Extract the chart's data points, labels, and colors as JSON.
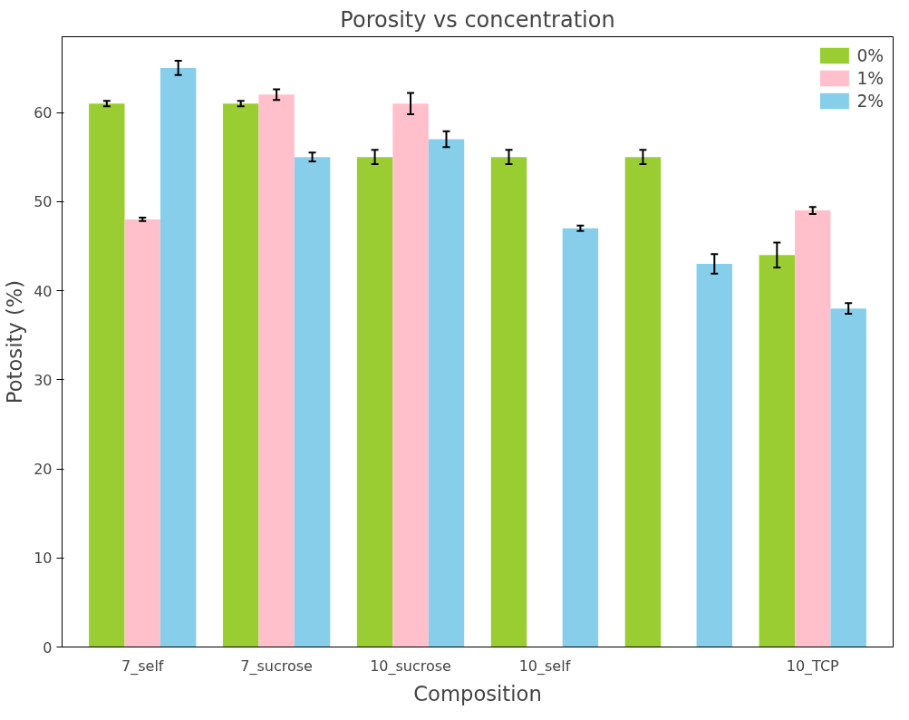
{
  "chart_data": {
    "type": "bar",
    "title": "Porosity vs concentration",
    "xlabel": "Composition",
    "ylabel": "Potosity (%)",
    "categories": [
      "7_self",
      "7_sucrose",
      "10_sucrose",
      "10_self",
      null,
      "10_TCP"
    ],
    "series": [
      {
        "name": "0%",
        "color": "#9acd32",
        "values": [
          61,
          61,
          55,
          55,
          55,
          44
        ],
        "errors": [
          0.3,
          0.3,
          0.8,
          0.8,
          0.8,
          1.4
        ]
      },
      {
        "name": "1%",
        "color": "#ffc0cb",
        "values": [
          48,
          62,
          61,
          null,
          null,
          49
        ],
        "errors": [
          0.2,
          0.6,
          1.2,
          null,
          null,
          0.4
        ]
      },
      {
        "name": "2%",
        "color": "#87ceeb",
        "values": [
          65,
          55,
          57,
          47,
          43,
          38
        ],
        "errors": [
          0.8,
          0.5,
          0.9,
          0.3,
          1.1,
          0.6
        ]
      }
    ],
    "ylim": [
      0,
      68.5
    ],
    "yticks": [
      0,
      10,
      20,
      30,
      40,
      50,
      60
    ],
    "grid": false,
    "legend": "top right"
  }
}
